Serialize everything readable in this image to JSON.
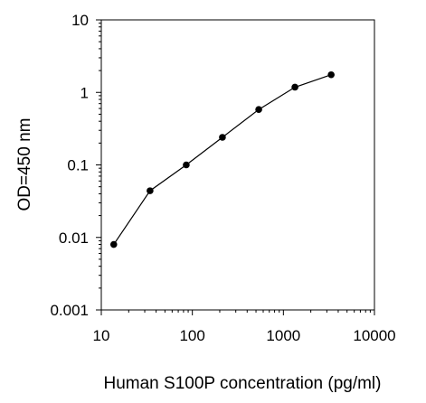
{
  "chart_data": {
    "type": "line",
    "title": "",
    "xlabel": "Human S100P concentration (pg/ml)",
    "ylabel": "OD=450 nm",
    "xscale": "log",
    "yscale": "log",
    "xlim": [
      10,
      10000
    ],
    "ylim": [
      0.001,
      10
    ],
    "xticks": [
      10,
      100,
      1000,
      10000
    ],
    "xtick_labels": [
      "10",
      "100",
      "1000",
      "10000"
    ],
    "yticks": [
      0.001,
      0.01,
      0.1,
      1,
      10
    ],
    "ytick_labels": [
      "0.001",
      "0.01",
      "0.1",
      "1",
      "10"
    ],
    "grid": false,
    "legend": "none",
    "line_color": "#000000",
    "marker": "filled-circle",
    "series": [
      {
        "x": [
          13.7,
          34.3,
          85.7,
          214,
          536,
          1339,
          3348
        ],
        "y": [
          0.008,
          0.044,
          0.1,
          0.24,
          0.58,
          1.18,
          1.75
        ]
      }
    ]
  }
}
